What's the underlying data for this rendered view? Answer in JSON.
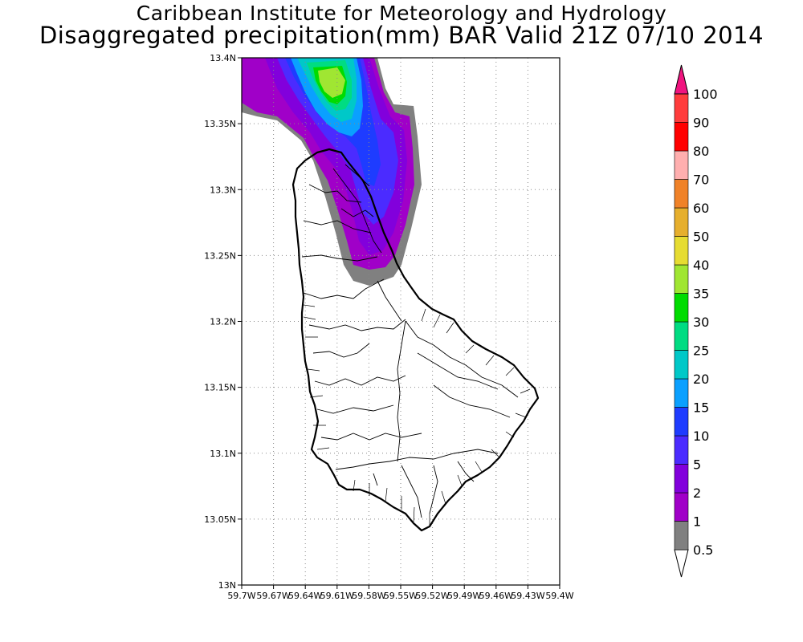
{
  "header": {
    "line1": "Caribbean Institute for Meteorology and Hydrology",
    "line2": "Disaggregated precipitation(mm) BAR Valid 21Z 07/10 2014"
  },
  "map": {
    "lat_ticks": [
      "13N",
      "13.05N",
      "13.1N",
      "13.15N",
      "13.2N",
      "13.25N",
      "13.3N",
      "13.35N",
      "13.4N"
    ],
    "lon_ticks": [
      "59.7W",
      "59.67W",
      "59.64W",
      "59.61W",
      "59.58W",
      "59.55W",
      "59.52W",
      "59.49W",
      "59.46W",
      "59.43W",
      "59.4W"
    ],
    "lat_range": [
      13.0,
      13.4
    ],
    "lon_range": [
      -59.7,
      -59.4
    ],
    "gridlines": true
  },
  "legend": {
    "levels": [
      {
        "value": "0.5",
        "color": "#ffffff"
      },
      {
        "value": "1",
        "color": "#808080"
      },
      {
        "value": "2",
        "color": "#a000c8"
      },
      {
        "value": "5",
        "color": "#8200dc"
      },
      {
        "value": "10",
        "color": "#4b2bff"
      },
      {
        "value": "15",
        "color": "#1e3cff"
      },
      {
        "value": "20",
        "color": "#0aa0ff"
      },
      {
        "value": "25",
        "color": "#00c8c8"
      },
      {
        "value": "30",
        "color": "#00dc82"
      },
      {
        "value": "35",
        "color": "#00dc00"
      },
      {
        "value": "40",
        "color": "#a0e632"
      },
      {
        "value": "50",
        "color": "#e6dc32"
      },
      {
        "value": "60",
        "color": "#e6af2d"
      },
      {
        "value": "70",
        "color": "#f08228"
      },
      {
        "value": "80",
        "color": "#ffafaf"
      },
      {
        "value": "90",
        "color": "#ff0000"
      },
      {
        "value": "100",
        "color": "#ff3c3c"
      }
    ],
    "top_color": "#f0147f"
  }
}
